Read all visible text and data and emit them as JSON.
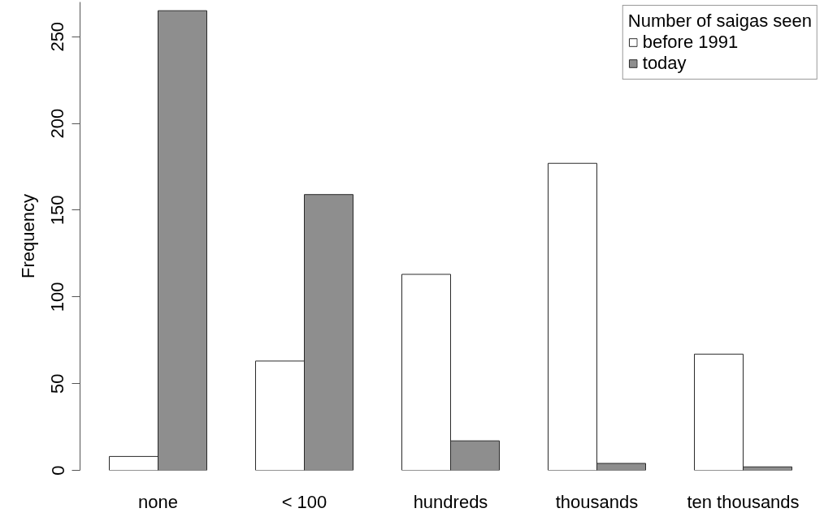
{
  "chart_data": {
    "type": "bar",
    "categories": [
      "none",
      "< 100",
      "hundreds",
      "thousands",
      "ten thousands"
    ],
    "ylabel": "Frequency",
    "legend_title": "Number of saigas seen",
    "series": [
      {
        "name": "before 1991",
        "color": "#ffffff",
        "values": [
          8,
          63,
          113,
          177,
          67
        ]
      },
      {
        "name": "today",
        "color": "#8e8e8e",
        "values": [
          265,
          159,
          17,
          4,
          2
        ]
      }
    ],
    "ylim": [
      0,
      270
    ],
    "yticks": [
      0,
      50,
      100,
      150,
      200,
      250
    ],
    "grid": false,
    "legend": "top right"
  }
}
